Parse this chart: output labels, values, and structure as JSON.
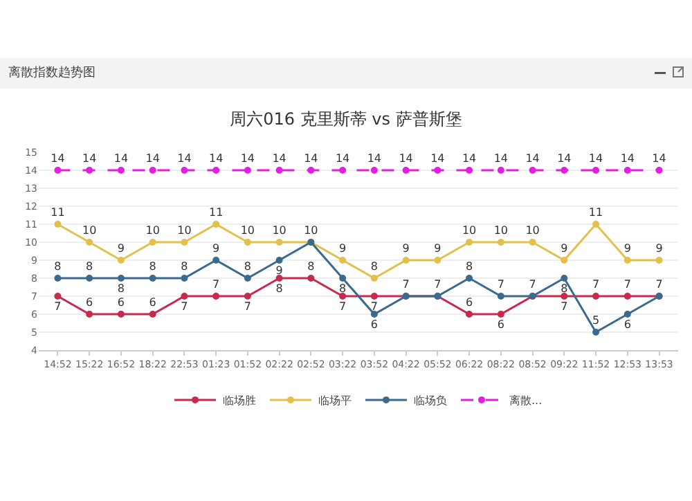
{
  "chart_data": {
    "type": "line",
    "title": "周六016 克里斯蒂 vs 萨普斯堡",
    "annotations": [
      "离散指数趋势图"
    ],
    "categories": [
      "14:52",
      "15:22",
      "16:52",
      "18:22",
      "22:53",
      "01:23",
      "01:52",
      "02:22",
      "02:52",
      "03:22",
      "03:52",
      "04:22",
      "05:52",
      "06:22",
      "08:22",
      "08:52",
      "09:22",
      "11:52",
      "12:53",
      "13:53"
    ],
    "series": [
      {
        "name": "临场胜",
        "color": "#c8294f",
        "line_style": "solid",
        "values": [
          7,
          6,
          6,
          6,
          7,
          7,
          7,
          8,
          8,
          7,
          7,
          7,
          7,
          6,
          6,
          7,
          7,
          7,
          7,
          7
        ],
        "value_labels": [
          "7",
          "6",
          "6",
          "6",
          "7",
          "7",
          "7",
          "8",
          "8",
          "7",
          "7",
          "7",
          "7",
          "6",
          "6",
          "7",
          "7",
          "7",
          "7",
          "7"
        ]
      },
      {
        "name": "临场平",
        "color": "#e3c04a",
        "line_style": "solid",
        "values": [
          11,
          10,
          9,
          10,
          10,
          11,
          10,
          10,
          10,
          9,
          8,
          9,
          9,
          10,
          10,
          10,
          9,
          11,
          9,
          9
        ],
        "value_labels": [
          "11",
          "10",
          "9",
          "10",
          "10",
          "11",
          "10",
          "10",
          "10",
          "9",
          "8",
          "9",
          "9",
          "10",
          "10",
          "10",
          "9",
          "11",
          "9",
          "9"
        ]
      },
      {
        "name": "临场负",
        "color": "#3b6a90",
        "line_style": "solid",
        "values": [
          8,
          8,
          8,
          8,
          8,
          9,
          8,
          9,
          10,
          8,
          6,
          7,
          7,
          8,
          7,
          7,
          8,
          5,
          6,
          7
        ],
        "value_labels": [
          "8",
          "8",
          "8",
          "8",
          "8",
          "9",
          "8",
          "9",
          null,
          "8",
          "6",
          null,
          null,
          "8",
          "7",
          null,
          "8",
          "5",
          "6",
          null
        ]
      },
      {
        "name": "离散...",
        "color": "#e21fe0",
        "line_style": "dashed",
        "values": [
          14,
          14,
          14,
          14,
          14,
          14,
          14,
          14,
          14,
          14,
          14,
          14,
          14,
          14,
          14,
          14,
          14,
          14,
          14,
          14
        ],
        "value_labels": [
          "14",
          "14",
          "14",
          "14",
          "14",
          "14",
          "14",
          "14",
          "14",
          "14",
          "14",
          "14",
          "14",
          "14",
          "14",
          "14",
          "14",
          "14",
          "14",
          "14"
        ]
      }
    ],
    "ylim": [
      4,
      15
    ],
    "yticks": [
      4,
      5,
      6,
      7,
      8,
      9,
      10,
      11,
      12,
      13,
      14,
      15
    ],
    "grid": "y",
    "legend": "bottom",
    "marker": "circle"
  }
}
